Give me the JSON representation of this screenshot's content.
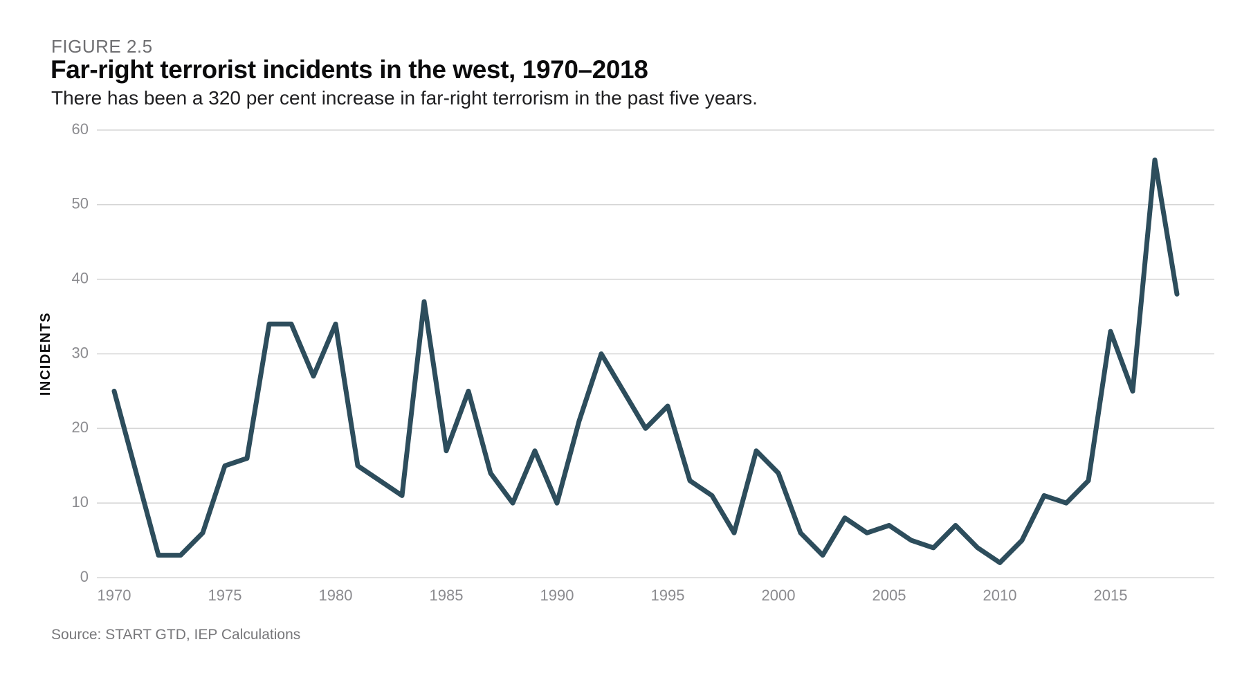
{
  "header": {
    "figure_label": "FIGURE 2.5",
    "title": "Far-right terrorist incidents in the west, 1970–2018",
    "subtitle": "There has been a 320 per cent increase in far-right terrorism in the past five years."
  },
  "footer": {
    "source": "Source: START GTD, IEP Calculations"
  },
  "colors": {
    "line": "#2d4d5c",
    "grid": "#d6d6d6",
    "tick_label": "#8b8b8f",
    "figure_label": "#6e6e71",
    "title": "#0b0b0c",
    "subtitle": "#202022",
    "source": "#77777a",
    "axis_title": "#0b0b0c",
    "background": "#ffffff"
  },
  "chart_data": {
    "type": "line",
    "title": "Far-right terrorist incidents in the west, 1970–2018",
    "subtitle": "There has been a 320 per cent increase in far-right terrorism in the past five years.",
    "xlabel": "",
    "ylabel": "INCIDENTS",
    "ylim": [
      0,
      60
    ],
    "yticks": [
      0,
      10,
      20,
      30,
      40,
      50,
      60
    ],
    "xticks": [
      1970,
      1975,
      1980,
      1985,
      1990,
      1995,
      2000,
      2005,
      2010,
      2015
    ],
    "xlim": [
      1970,
      2018
    ],
    "grid": "horizontal",
    "legend": "none",
    "series": [
      {
        "name": "Far-right terrorist incidents",
        "x": [
          1970,
          1971,
          1972,
          1973,
          1974,
          1975,
          1976,
          1977,
          1978,
          1979,
          1980,
          1981,
          1982,
          1983,
          1984,
          1985,
          1986,
          1987,
          1988,
          1989,
          1990,
          1991,
          1992,
          1993,
          1994,
          1995,
          1996,
          1997,
          1998,
          1999,
          2000,
          2001,
          2002,
          2003,
          2004,
          2005,
          2006,
          2007,
          2008,
          2009,
          2010,
          2011,
          2012,
          2013,
          2014,
          2015,
          2016,
          2017,
          2018
        ],
        "values": [
          25,
          14,
          3,
          3,
          6,
          15,
          16,
          34,
          34,
          27,
          34,
          15,
          13,
          11,
          37,
          17,
          25,
          14,
          10,
          17,
          10,
          21,
          30,
          25,
          20,
          23,
          13,
          11,
          6,
          17,
          14,
          6,
          3,
          8,
          6,
          7,
          5,
          4,
          7,
          4,
          2,
          5,
          11,
          10,
          13,
          33,
          25,
          56,
          38
        ]
      }
    ]
  }
}
